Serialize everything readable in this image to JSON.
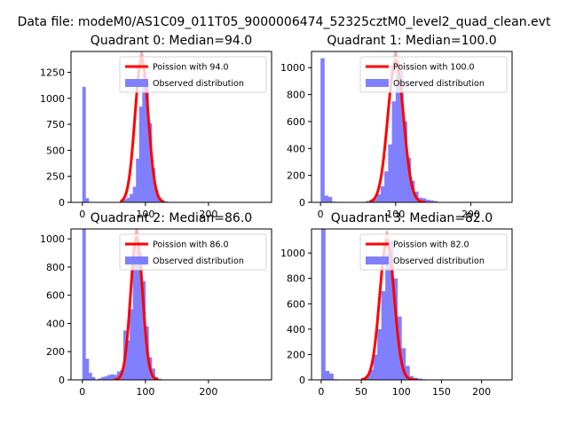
{
  "figure": {
    "suptitle": "Data file: modeM0/AS1C09_011T05_9000006474_52325cztM0_level2_quad_clean.evt"
  },
  "colors": {
    "fit_line": "#ff0000",
    "fit_band": "#f4a0a0",
    "histogram": "#8080ff",
    "axes": "#000000",
    "background": "#ffffff"
  },
  "chart_data": [
    {
      "type": "bar",
      "title": "Quadrant 0: Median=94.0",
      "median": 94.0,
      "xlim": [
        -18,
        300
      ],
      "ylim": [
        0,
        1450
      ],
      "xticks": [
        0,
        100,
        200
      ],
      "xtick_labels": [
        "0",
        "100",
        "200"
      ],
      "yticks": [
        0,
        250,
        500,
        750,
        1000,
        1250
      ],
      "ytick_labels": [
        "0",
        "250",
        "500",
        "750",
        "1000",
        "1250"
      ],
      "bin_width": 5.5,
      "hist_bins": [
        [
          0,
          1110
        ],
        [
          5,
          40
        ],
        [
          10,
          5
        ],
        [
          15,
          3
        ],
        [
          55,
          4
        ],
        [
          60,
          10
        ],
        [
          65,
          30
        ],
        [
          70,
          45
        ],
        [
          75,
          80
        ],
        [
          80,
          150
        ],
        [
          85,
          420
        ],
        [
          90,
          920
        ],
        [
          95,
          1230
        ],
        [
          100,
          1150
        ],
        [
          105,
          760
        ],
        [
          110,
          330
        ],
        [
          115,
          120
        ],
        [
          120,
          45
        ],
        [
          125,
          20
        ],
        [
          130,
          10
        ],
        [
          135,
          5
        ]
      ],
      "fit_peak": 1380,
      "fit_sigma": 10.5,
      "fit_range": [
        60,
        130
      ],
      "legend": {
        "fit": "Poission with 94.0",
        "hist": "Observed distribution"
      }
    },
    {
      "type": "bar",
      "title": "Quadrant 1: Median=100.0",
      "median": 100.0,
      "xlim": [
        -12,
        255
      ],
      "ylim": [
        0,
        1120
      ],
      "xticks": [
        0,
        100,
        200
      ],
      "xtick_labels": [
        "0",
        "100",
        "200"
      ],
      "yticks": [
        0,
        200,
        400,
        600,
        800,
        1000
      ],
      "ytick_labels": [
        "0",
        "200",
        "400",
        "600",
        "800",
        "1000"
      ],
      "bin_width": 5.5,
      "hist_bins": [
        [
          0,
          1070
        ],
        [
          5,
          50
        ],
        [
          10,
          40
        ],
        [
          15,
          5
        ],
        [
          60,
          10
        ],
        [
          65,
          15
        ],
        [
          70,
          30
        ],
        [
          75,
          60
        ],
        [
          80,
          120
        ],
        [
          85,
          230
        ],
        [
          90,
          430
        ],
        [
          95,
          750
        ],
        [
          100,
          1050
        ],
        [
          105,
          980
        ],
        [
          110,
          600
        ],
        [
          115,
          330
        ],
        [
          120,
          160
        ],
        [
          125,
          80
        ],
        [
          130,
          35
        ],
        [
          135,
          30
        ],
        [
          140,
          20
        ],
        [
          145,
          15
        ],
        [
          150,
          10
        ]
      ],
      "fit_peak": 1050,
      "fit_sigma": 10.5,
      "fit_range": [
        65,
        140
      ],
      "legend": {
        "fit": "Poission with 100.0",
        "hist": "Observed distribution"
      }
    },
    {
      "type": "bar",
      "title": "Quadrant 2: Median=86.0",
      "median": 86.0,
      "xlim": [
        -18,
        300
      ],
      "ylim": [
        0,
        1070
      ],
      "xticks": [
        0,
        100,
        200
      ],
      "xtick_labels": [
        "0",
        "100",
        "200"
      ],
      "yticks": [
        0,
        200,
        400,
        600,
        800,
        1000
      ],
      "ytick_labels": [
        "0",
        "200",
        "400",
        "600",
        "800",
        "1000"
      ],
      "bin_width": 5.5,
      "hist_bins": [
        [
          0,
          1080
        ],
        [
          5,
          150
        ],
        [
          10,
          50
        ],
        [
          15,
          20
        ],
        [
          25,
          10
        ],
        [
          30,
          20
        ],
        [
          35,
          25
        ],
        [
          40,
          35
        ],
        [
          45,
          40
        ],
        [
          50,
          35
        ],
        [
          55,
          60
        ],
        [
          60,
          70
        ],
        [
          65,
          350
        ],
        [
          70,
          280
        ],
        [
          75,
          500
        ],
        [
          80,
          850
        ],
        [
          85,
          1000
        ],
        [
          90,
          900
        ],
        [
          95,
          700
        ],
        [
          100,
          380
        ],
        [
          105,
          160
        ],
        [
          110,
          80
        ],
        [
          115,
          20
        ],
        [
          120,
          8
        ]
      ],
      "fit_peak": 1010,
      "fit_sigma": 9.5,
      "fit_range": [
        50,
        120
      ],
      "legend": {
        "fit": "Poission with 86.0",
        "hist": "Observed distribution"
      }
    },
    {
      "type": "bar",
      "title": "Quadrant 3: Median=82.0",
      "median": 82.0,
      "xlim": [
        -12,
        238
      ],
      "ylim": [
        0,
        1190
      ],
      "xticks": [
        0,
        50,
        100,
        150,
        200
      ],
      "xtick_labels": [
        "0",
        "50",
        "100",
        "150",
        "200"
      ],
      "yticks": [
        0,
        200,
        400,
        600,
        800,
        1000
      ],
      "ytick_labels": [
        "0",
        "200",
        "400",
        "600",
        "800",
        "1000"
      ],
      "bin_width": 5.5,
      "hist_bins": [
        [
          0,
          1190
        ],
        [
          5,
          70
        ],
        [
          10,
          50
        ],
        [
          15,
          5
        ],
        [
          50,
          10
        ],
        [
          55,
          25
        ],
        [
          60,
          80
        ],
        [
          65,
          200
        ],
        [
          70,
          400
        ],
        [
          75,
          700
        ],
        [
          80,
          1000
        ],
        [
          85,
          1100
        ],
        [
          90,
          800
        ],
        [
          95,
          500
        ],
        [
          100,
          250
        ],
        [
          105,
          110
        ],
        [
          110,
          30
        ],
        [
          115,
          15
        ],
        [
          120,
          10
        ],
        [
          125,
          5
        ]
      ],
      "fit_peak": 1100,
      "fit_sigma": 9.0,
      "fit_range": [
        50,
        120
      ],
      "legend": {
        "fit": "Poission with 82.0",
        "hist": "Observed distribution"
      }
    }
  ]
}
